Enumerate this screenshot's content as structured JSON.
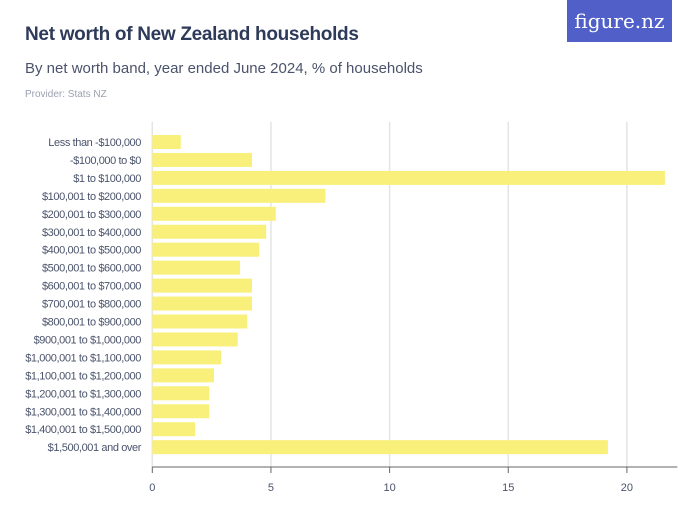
{
  "header": {
    "title": "Net worth of New Zealand households",
    "subtitle": "By net worth band, year ended June 2024, % of households",
    "provider": "Provider: Stats NZ",
    "logo_text": "figure.nz",
    "logo_color": "#5060c8"
  },
  "chart_data": {
    "type": "bar",
    "orientation": "horizontal",
    "title": "Net worth of New Zealand households",
    "subtitle": "By net worth band, year ended June 2024, % of households",
    "categories": [
      "Less than -$100,000",
      "-$100,000 to $0",
      "$1 to $100,000",
      "$100,001 to $200,000",
      "$200,001 to $300,000",
      "$300,001 to $400,000",
      "$400,001 to $500,000",
      "$500,001 to $600,000",
      "$600,001 to $700,000",
      "$700,001 to $800,000",
      "$800,001 to $900,000",
      "$900,001 to $1,000,000",
      "$1,000,001 to $1,100,000",
      "$1,100,001 to $1,200,000",
      "$1,200,001 to $1,300,000",
      "$1,300,001 to $1,400,000",
      "$1,400,001 to $1,500,000",
      "$1,500,001 and over"
    ],
    "values": [
      1.2,
      4.2,
      21.6,
      7.3,
      5.2,
      4.8,
      4.5,
      3.7,
      4.2,
      4.2,
      4.0,
      3.6,
      2.9,
      2.6,
      2.4,
      2.4,
      1.8,
      19.2
    ],
    "xlim": [
      0,
      22
    ],
    "xticks": [
      0,
      5,
      10,
      15,
      20
    ],
    "grid": true,
    "bar_color": "#f8f07a",
    "grid_color": "#e4e4e4"
  }
}
